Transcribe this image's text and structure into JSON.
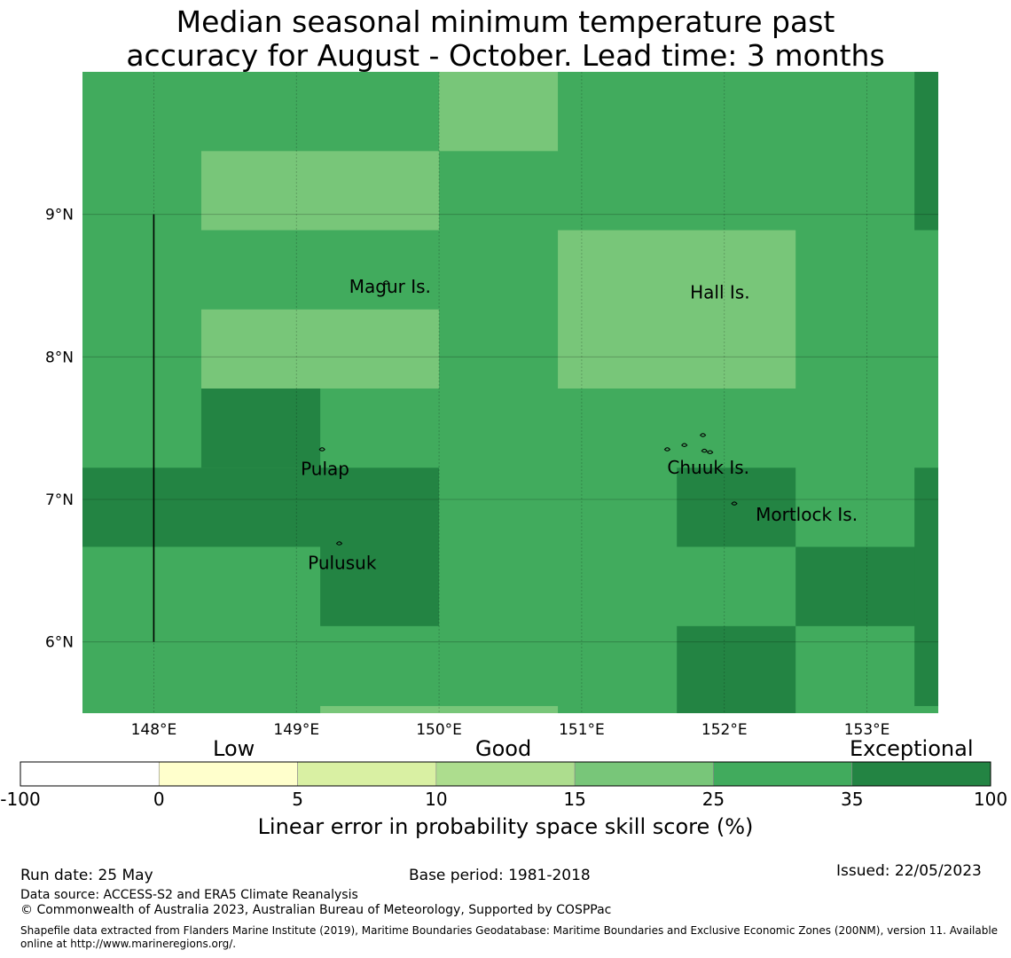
{
  "title": {
    "line1": "Median seasonal minimum temperature past",
    "line2": "accuracy for August - October. Lead time: 3 months"
  },
  "map": {
    "lon_range": [
      147.5,
      153.5
    ],
    "lat_range": [
      5.5,
      10.0
    ],
    "lon_ticks": [
      148,
      149,
      150,
      151,
      152,
      153
    ],
    "lon_tick_labels": [
      "148°E",
      "149°E",
      "150°E",
      "151°E",
      "152°E",
      "153°E"
    ],
    "lat_ticks": [
      9,
      8,
      7,
      6
    ],
    "lat_tick_labels": [
      "9°N",
      "8°N",
      "7°N",
      "6°N"
    ],
    "category_colors": {
      "15-25": "#78c679",
      "25-35": "#41ab5d",
      "35-100": "#238443"
    },
    "base_category": "25-35",
    "cells": [
      {
        "lon": [
          150.0,
          150.833
        ],
        "lat": [
          9.444,
          10.0
        ],
        "category": "15-25"
      },
      {
        "lon": [
          148.333,
          150.0
        ],
        "lat": [
          8.889,
          9.444
        ],
        "category": "15-25"
      },
      {
        "lon": [
          148.333,
          150.0
        ],
        "lat": [
          7.778,
          8.333
        ],
        "category": "15-25"
      },
      {
        "lon": [
          150.833,
          152.5
        ],
        "lat": [
          7.778,
          8.889
        ],
        "category": "15-25"
      },
      {
        "lon": [
          149.167,
          150.833
        ],
        "lat": [
          5.5,
          5.55
        ],
        "category": "15-25"
      },
      {
        "lon": [
          153.333,
          153.5
        ],
        "lat": [
          8.889,
          10.0
        ],
        "category": "35-100"
      },
      {
        "lon": [
          148.333,
          149.167
        ],
        "lat": [
          7.222,
          7.778
        ],
        "category": "35-100"
      },
      {
        "lon": [
          147.5,
          150.0
        ],
        "lat": [
          6.667,
          7.222
        ],
        "category": "35-100"
      },
      {
        "lon": [
          149.167,
          150.0
        ],
        "lat": [
          6.111,
          6.667
        ],
        "category": "35-100"
      },
      {
        "lon": [
          151.667,
          152.5
        ],
        "lat": [
          6.667,
          7.222
        ],
        "category": "35-100"
      },
      {
        "lon": [
          152.5,
          153.5
        ],
        "lat": [
          6.111,
          6.667
        ],
        "category": "35-100"
      },
      {
        "lon": [
          151.667,
          152.5
        ],
        "lat": [
          5.5,
          6.111
        ],
        "category": "35-100"
      },
      {
        "lon": [
          153.333,
          153.5
        ],
        "lat": [
          5.55,
          7.222
        ],
        "category": "35-100"
      }
    ],
    "boundary_line": {
      "lon": 148.0,
      "lat": [
        6.0,
        9.0
      ]
    },
    "places": [
      {
        "name": "Magur Is.",
        "lon": 149.37,
        "lat": 8.45
      },
      {
        "name": "Hall Is.",
        "lon": 151.76,
        "lat": 8.41
      },
      {
        "name": "Pulap",
        "lon": 149.03,
        "lat": 7.17
      },
      {
        "name": "Chuuk Is.",
        "lon": 151.6,
        "lat": 7.18
      },
      {
        "name": "Mortlock Is.",
        "lon": 152.22,
        "lat": 6.85
      },
      {
        "name": "Pulusuk",
        "lon": 149.08,
        "lat": 6.51
      }
    ]
  },
  "legend": {
    "categories": [
      "Low",
      "Good",
      "Exceptional"
    ],
    "bins": [
      {
        "from": -100,
        "to": 0,
        "color": "#ffffff"
      },
      {
        "from": 0,
        "to": 5,
        "color": "#ffffcc"
      },
      {
        "from": 5,
        "to": 10,
        "color": "#d9f0a3"
      },
      {
        "from": 10,
        "to": 15,
        "color": "#addd8e"
      },
      {
        "from": 15,
        "to": 25,
        "color": "#78c679"
      },
      {
        "from": 25,
        "to": 35,
        "color": "#41ab5d"
      },
      {
        "from": 35,
        "to": 100,
        "color": "#238443"
      }
    ],
    "ticks": [
      "-100",
      "0",
      "5",
      "10",
      "15",
      "25",
      "35",
      "100"
    ],
    "label": "Linear error in probability space skill score (%)"
  },
  "footer": {
    "run_date": "Run date: 25 May",
    "base_period": "Base period: 1981-2018",
    "issued": "Issued: 22/05/2023",
    "data_source": "Data source: ACCESS-S2 and ERA5 Climate Reanalysis",
    "copyright": "© Commonwealth of Australia 2023, Australian Bureau of Meteorology, Supported by COSPPac",
    "shapefile": "Shapefile data extracted from Flanders Marine Institute (2019), Maritime Boundaries Geodatabase: Maritime Boundaries and Exclusive Economic Zones (200NM), version 11. Available online at http://www.marineregions.org/."
  }
}
